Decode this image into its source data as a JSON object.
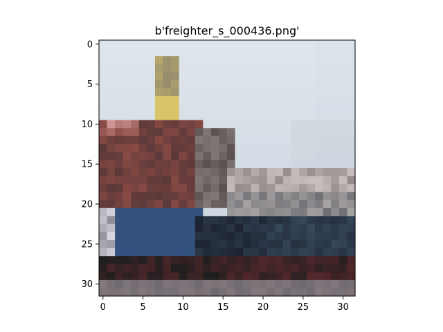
{
  "title": "b'freighter_s_000436.png'",
  "image": {
    "rows": 32,
    "cols": 32,
    "subject": "cargo-ship",
    "palette": {
      "sky": "#cfd8e2",
      "sky_light": "#dfe5ec",
      "tower": "#d9c46a",
      "superstructure": "#8a4a44",
      "hull_blue": "#33527c",
      "hull_dark": "#1c2230",
      "water": "#6f6a70"
    }
  },
  "axes": {
    "x_ticks": [
      "0",
      "5",
      "10",
      "15",
      "20",
      "25",
      "30"
    ],
    "y_ticks": [
      "0",
      "5",
      "10",
      "15",
      "20",
      "25",
      "30"
    ],
    "x_values": [
      0,
      5,
      10,
      15,
      20,
      25,
      30
    ],
    "y_values": [
      0,
      5,
      10,
      15,
      20,
      25,
      30
    ]
  }
}
